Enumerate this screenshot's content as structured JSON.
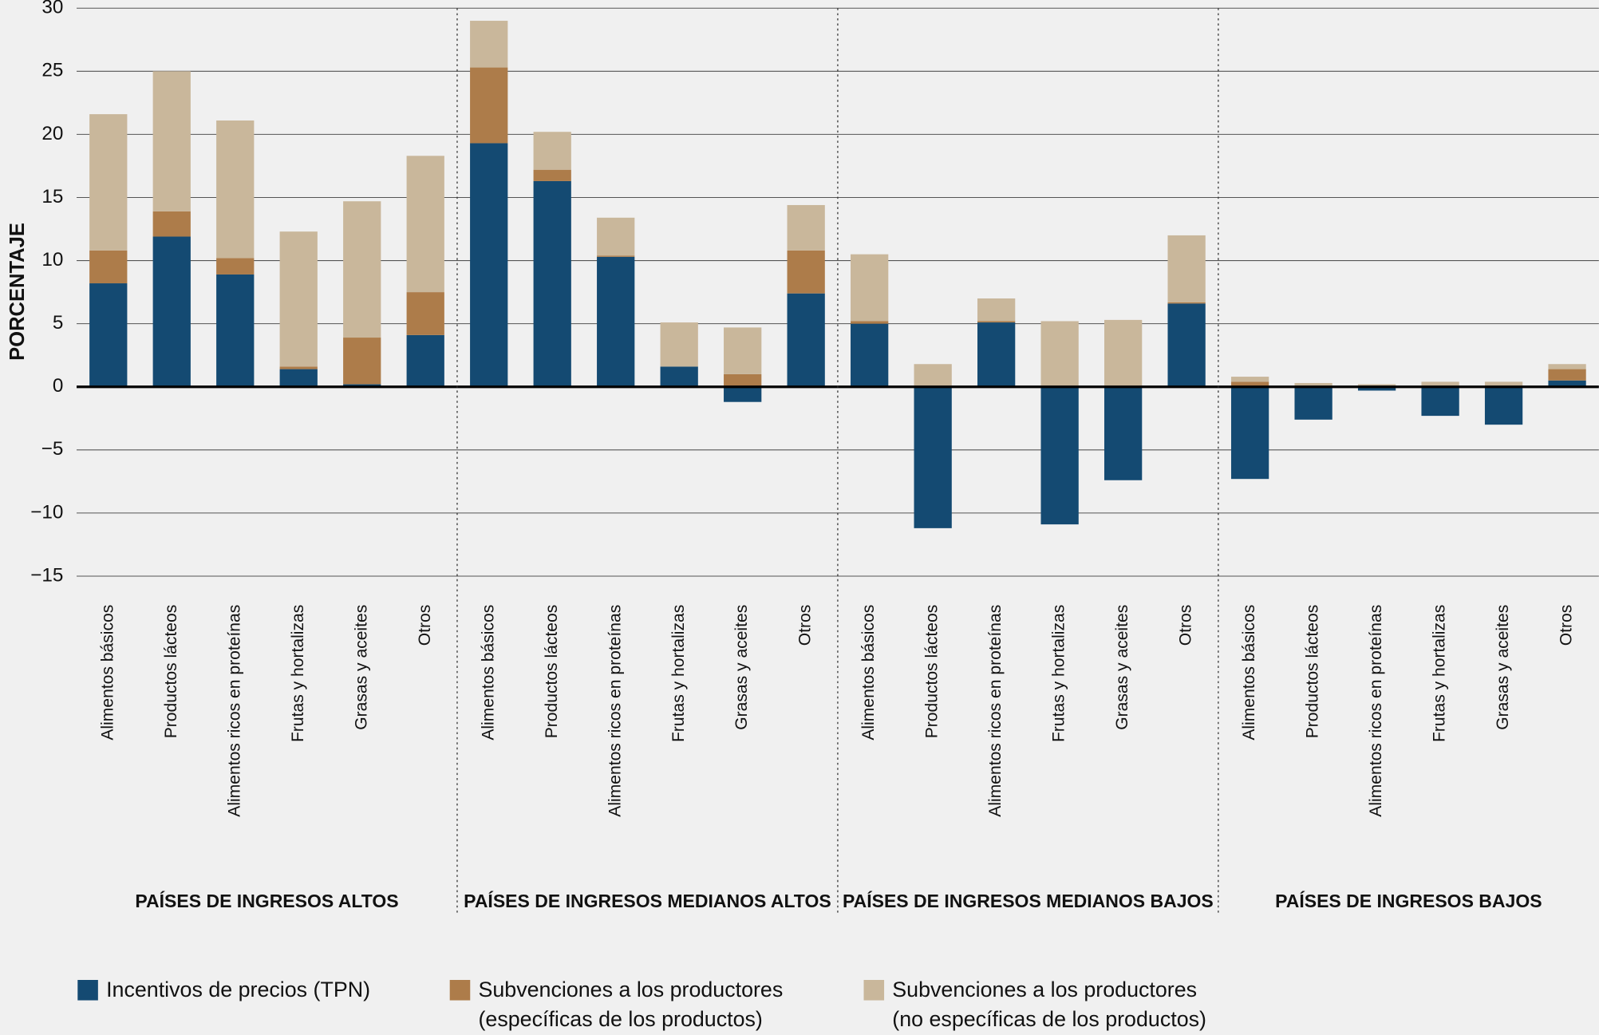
{
  "chart_data": {
    "type": "stacked-bar",
    "y_label": "PORCENTAJE",
    "categories": [
      "Alimentos básicos",
      "Productos lácteos",
      "Alimentos ricos en proteínas",
      "Frutas y hortalizas",
      "Grasas y aceites",
      "Otros",
      "Alimentos básicos",
      "Productos lácteos",
      "Alimentos ricos en proteínas",
      "Frutas y hortalizas",
      "Grasas y aceites",
      "Otros",
      "Alimentos básicos",
      "Productos lácteos",
      "Alimentos ricos en proteínas",
      "Frutas y hortalizas",
      "Grasas y aceites",
      "Otros",
      "Alimentos básicos",
      "Productos lácteos",
      "Alimentos ricos en proteínas",
      "Frutas y hortalizas",
      "Grasas y aceites",
      "Otros"
    ],
    "groups": [
      "PAÍSES DE INGRESOS ALTOS",
      "PAÍSES DE INGRESOS MEDIANOS ALTOS",
      "PAÍSES DE INGRESOS MEDIANOS BAJOS",
      "PAÍSES DE INGRESOS BAJOS"
    ],
    "series": [
      {
        "name": "Incentivos de precios (TPN)",
        "color": "#144a72",
        "values": [
          8.2,
          11.9,
          8.9,
          1.4,
          0.2,
          4.1,
          19.3,
          16.3,
          10.3,
          1.6,
          -1.2,
          7.4,
          5.0,
          -11.2,
          5.1,
          -10.9,
          -7.4,
          6.6,
          -7.3,
          -2.6,
          -0.3,
          -2.3,
          -3.0,
          0.5
        ]
      },
      {
        "name": "Subvenciones a los productores\n(específicas de los productos)",
        "color": "#ad7c4a",
        "values": [
          2.6,
          2.0,
          1.3,
          0.2,
          3.7,
          3.4,
          6.0,
          0.9,
          0.1,
          0,
          1.0,
          3.4,
          0.2,
          0,
          0.1,
          0,
          0,
          0.1,
          0.4,
          0,
          0,
          0,
          0,
          0.9
        ]
      },
      {
        "name": "Subvenciones a los productores\n(no específicas de los productos)",
        "color": "#c9b79b",
        "values": [
          10.8,
          11.1,
          10.9,
          10.7,
          10.8,
          10.8,
          3.7,
          3.0,
          3.0,
          3.5,
          3.7,
          3.6,
          5.3,
          1.8,
          1.8,
          5.2,
          5.3,
          5.3,
          0.4,
          0.3,
          0.2,
          0.4,
          0.4,
          0.4
        ]
      }
    ],
    "ylim": [
      -15,
      30
    ],
    "yticks": [
      {
        "value": -15,
        "label": "−15"
      },
      {
        "value": -10,
        "label": "−10"
      },
      {
        "value": -5,
        "label": "−5"
      },
      0,
      5,
      10,
      15,
      20,
      25,
      30
    ],
    "grid": true
  }
}
